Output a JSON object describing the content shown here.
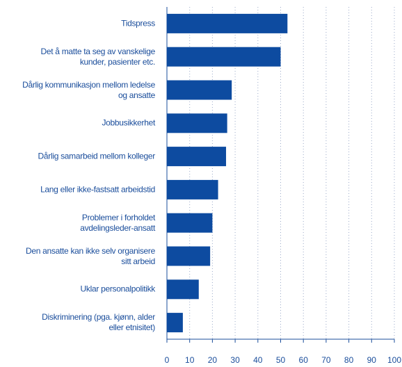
{
  "chart_data": {
    "type": "bar",
    "orientation": "horizontal",
    "categories": [
      "Tidspress",
      "Det å matte ta seg av vanskelige\nkunder, pasienter etc.",
      "Dårlig kommunikasjon mellom ledelse\nog ansatte",
      "Jobbusikkerhet",
      "Dårlig samarbeid mellom kolleger",
      "Lang eller ikke-fastsatt arbeidstid",
      "Problemer i forholdet\navdelingsleder-ansatt",
      "Den ansatte kan ikke selv organisere\nsitt arbeid",
      "Uklar personalpolitikk",
      "Diskriminering (pga. kjønn, alder\neller etnisitet)"
    ],
    "values": [
      53,
      50,
      28.5,
      26.5,
      26,
      22.5,
      20,
      19,
      14,
      7
    ],
    "color": "#0d4ba0",
    "xlim": [
      0,
      100
    ],
    "xticks": [
      0,
      10,
      20,
      30,
      40,
      50,
      60,
      70,
      80,
      90,
      100
    ],
    "grid": true
  }
}
